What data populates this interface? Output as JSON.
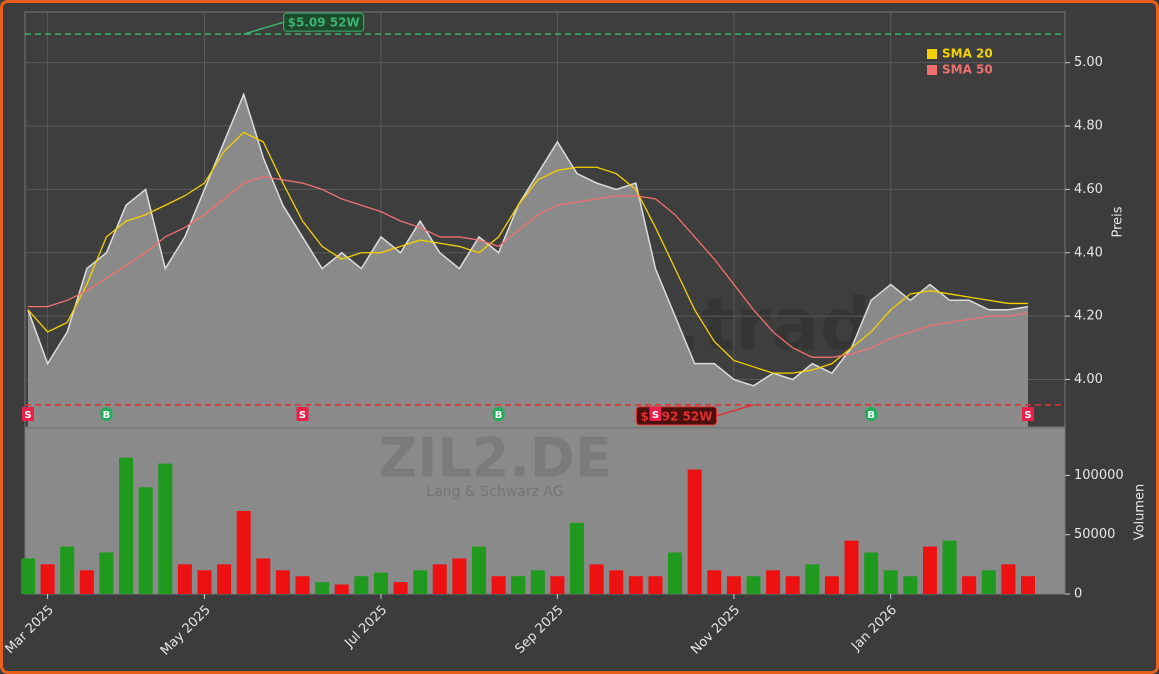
{
  "chart_data": [
    {
      "type": "line",
      "title": "ZIL2.DE",
      "subtitle": "Lang & Schwarz AG",
      "watermark": "forexsignale.trade",
      "ylabel": "Preis",
      "categories": [
        null,
        "Mar 2025",
        null,
        null,
        null,
        null,
        null,
        null,
        null,
        "May 2025",
        null,
        null,
        null,
        null,
        null,
        null,
        null,
        null,
        "Jul 2025",
        null,
        null,
        null,
        null,
        null,
        null,
        null,
        null,
        "Sep 2025",
        null,
        null,
        null,
        null,
        null,
        null,
        null,
        null,
        "Nov 2025",
        null,
        null,
        null,
        null,
        null,
        null,
        null,
        "Jan 2026",
        null,
        null,
        null,
        null,
        null,
        null,
        null
      ],
      "series": [
        {
          "color": "#dcdcdc",
          "values": [
            4.22,
            4.05,
            4.15,
            4.35,
            4.4,
            4.55,
            4.6,
            4.35,
            4.45,
            4.6,
            4.75,
            4.9,
            4.7,
            4.55,
            4.45,
            4.35,
            4.4,
            4.35,
            4.45,
            4.4,
            4.5,
            4.4,
            4.35,
            4.45,
            4.4,
            4.55,
            4.65,
            4.75,
            4.65,
            4.62,
            4.6,
            4.62,
            4.35,
            4.2,
            4.05,
            4.05,
            4.0,
            3.98,
            4.02,
            4.0,
            4.05,
            4.02,
            4.1,
            4.25,
            4.3,
            4.25,
            4.3,
            4.25,
            4.25,
            4.22,
            4.22,
            4.23
          ]
        },
        {
          "name": "SMA 20",
          "color": "#f5d000",
          "values": [
            4.22,
            4.15,
            4.18,
            4.3,
            4.45,
            4.5,
            4.52,
            4.55,
            4.58,
            4.62,
            4.72,
            4.78,
            4.75,
            4.62,
            4.5,
            4.42,
            4.38,
            4.4,
            4.4,
            4.42,
            4.44,
            4.43,
            4.42,
            4.4,
            4.45,
            4.55,
            4.63,
            4.66,
            4.67,
            4.67,
            4.65,
            4.6,
            4.48,
            4.35,
            4.22,
            4.12,
            4.06,
            4.04,
            4.02,
            4.02,
            4.03,
            4.05,
            4.1,
            4.15,
            4.22,
            4.27,
            4.28,
            4.27,
            4.26,
            4.25,
            4.24,
            4.24
          ]
        },
        {
          "name": "SMA 50",
          "color": "#f07070",
          "values": [
            4.23,
            4.23,
            4.25,
            4.28,
            4.32,
            4.36,
            4.4,
            4.45,
            4.48,
            4.52,
            4.57,
            4.62,
            4.64,
            4.63,
            4.62,
            4.6,
            4.57,
            4.55,
            4.53,
            4.5,
            4.48,
            4.45,
            4.45,
            4.44,
            4.42,
            4.47,
            4.52,
            4.55,
            4.56,
            4.57,
            4.58,
            4.58,
            4.57,
            4.52,
            4.45,
            4.38,
            4.3,
            4.22,
            4.15,
            4.1,
            4.07,
            4.07,
            4.08,
            4.1,
            4.13,
            4.15,
            4.17,
            4.18,
            4.19,
            4.2,
            4.2,
            4.21
          ]
        }
      ],
      "ylim": [
        3.85,
        5.16
      ],
      "yticks": [
        {
          "value": 4,
          "label": "4.00"
        },
        {
          "value": 4.2,
          "label": "4.20"
        },
        {
          "value": 4.4,
          "label": "4.40"
        },
        {
          "value": 4.6,
          "label": "4.60"
        },
        {
          "value": 4.8,
          "label": "4.80"
        },
        {
          "value": 5,
          "label": "5.00"
        }
      ],
      "grid": true,
      "legend": "upper right",
      "signals": [
        "S",
        null,
        null,
        null,
        "B",
        null,
        null,
        null,
        null,
        null,
        null,
        null,
        null,
        null,
        "S",
        null,
        null,
        null,
        null,
        null,
        null,
        null,
        null,
        null,
        "B",
        null,
        null,
        null,
        null,
        null,
        null,
        null,
        "S",
        null,
        null,
        null,
        null,
        null,
        null,
        null,
        null,
        null,
        null,
        "B",
        null,
        null,
        null,
        null,
        null,
        null,
        null,
        "S"
      ],
      "signal_colors": {
        "S": "#e8204a",
        "B": "#1fae5a"
      },
      "reference_lines": [
        {
          "value": 5.09,
          "label": "$5.09 52W",
          "color": "#3cb371"
        },
        {
          "value": 3.92,
          "label": "$3.92 52W",
          "color": "#e03030"
        }
      ]
    },
    {
      "type": "bar",
      "ylabel": "Volumen",
      "values": [
        30000,
        25000,
        40000,
        20000,
        35000,
        115000,
        90000,
        110000,
        25000,
        20000,
        25000,
        70000,
        30000,
        20000,
        15000,
        10000,
        8000,
        15000,
        18000,
        10000,
        20000,
        25000,
        30000,
        40000,
        15000,
        15000,
        20000,
        15000,
        60000,
        25000,
        20000,
        15000,
        15000,
        35000,
        105000,
        20000,
        15000,
        15000,
        20000,
        15000,
        25000,
        15000,
        45000,
        35000,
        20000,
        15000,
        40000,
        45000,
        15000,
        20000,
        25000,
        15000
      ],
      "colors": [
        "#1f9a1f",
        "#ee1111",
        "#1f9a1f",
        "#ee1111",
        "#1f9a1f",
        "#1f9a1f",
        "#1f9a1f",
        "#1f9a1f",
        "#ee1111",
        "#ee1111",
        "#ee1111",
        "#ee1111",
        "#ee1111",
        "#ee1111",
        "#ee1111",
        "#1f9a1f",
        "#ee1111",
        "#1f9a1f",
        "#1f9a1f",
        "#ee1111",
        "#1f9a1f",
        "#ee1111",
        "#ee1111",
        "#1f9a1f",
        "#ee1111",
        "#1f9a1f",
        "#1f9a1f",
        "#ee1111",
        "#1f9a1f",
        "#ee1111",
        "#ee1111",
        "#ee1111",
        "#ee1111",
        "#1f9a1f",
        "#ee1111",
        "#ee1111",
        "#ee1111",
        "#1f9a1f",
        "#ee1111",
        "#ee1111",
        "#1f9a1f",
        "#ee1111",
        "#ee1111",
        "#1f9a1f",
        "#1f9a1f",
        "#1f9a1f",
        "#ee1111",
        "#1f9a1f",
        "#ee1111",
        "#1f9a1f",
        "#ee1111",
        "#ee1111"
      ],
      "ylim": [
        0,
        140000
      ],
      "yticks": [
        0,
        50000,
        100000
      ]
    }
  ]
}
